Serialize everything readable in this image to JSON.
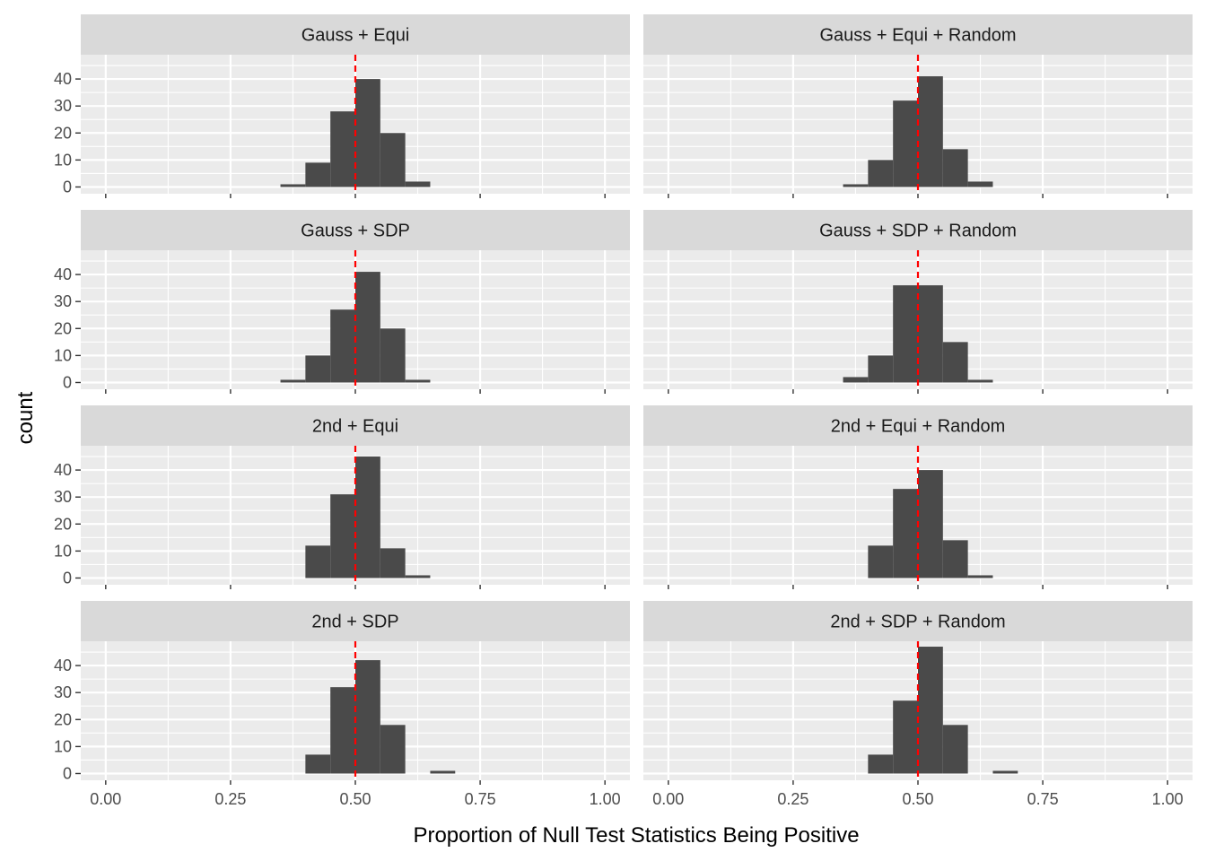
{
  "chart_data": {
    "type": "bar",
    "xlabel": "Proportion of Null Test Statistics Being Positive",
    "ylabel": "count",
    "xlim": [
      -0.05,
      1.05
    ],
    "ylim": [
      -2.5,
      49
    ],
    "x_ticks": [
      0.0,
      0.25,
      0.5,
      0.75,
      1.0
    ],
    "x_tick_labels": [
      "0.00",
      "0.25",
      "0.50",
      "0.75",
      "1.00"
    ],
    "y_ticks": [
      0,
      10,
      20,
      30,
      40
    ],
    "y_tick_labels": [
      "0",
      "10",
      "20",
      "30",
      "40"
    ],
    "grid": true,
    "reference_line": {
      "x": 0.5,
      "color": "#ff0000",
      "style": "dashed"
    },
    "bar_color": "#4a4a4a",
    "bin_edges": [
      0.35,
      0.4,
      0.45,
      0.5,
      0.55,
      0.6,
      0.65,
      0.7
    ],
    "panels": [
      {
        "title": "Gauss + Equi",
        "counts": [
          1,
          9,
          28,
          40,
          20,
          2,
          0
        ]
      },
      {
        "title": "Gauss + Equi + Random",
        "counts": [
          1,
          10,
          32,
          41,
          14,
          2,
          0
        ]
      },
      {
        "title": "Gauss + SDP",
        "counts": [
          1,
          10,
          27,
          41,
          20,
          1,
          0
        ]
      },
      {
        "title": "Gauss + SDP + Random",
        "counts": [
          2,
          10,
          36,
          36,
          15,
          1,
          0
        ]
      },
      {
        "title": "2nd + Equi",
        "counts": [
          0,
          12,
          31,
          45,
          11,
          1,
          0
        ]
      },
      {
        "title": "2nd + Equi + Random",
        "counts": [
          0,
          12,
          33,
          40,
          14,
          1,
          0
        ]
      },
      {
        "title": "2nd + SDP",
        "counts": [
          0,
          7,
          32,
          42,
          18,
          0,
          1
        ]
      },
      {
        "title": "2nd + SDP + Random",
        "counts": [
          0,
          7,
          27,
          47,
          18,
          0,
          1
        ]
      }
    ]
  }
}
